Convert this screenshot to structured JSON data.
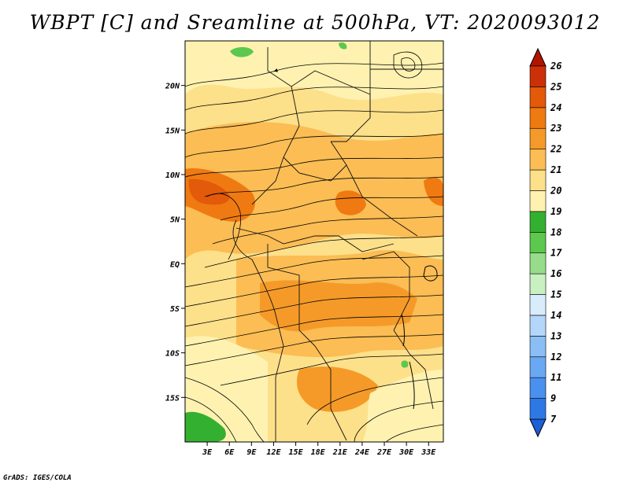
{
  "title": "WBPT [C] and Sreamline at 500hPa, VT: 2020093012",
  "footer": "GrADS: IGES/COLA",
  "map": {
    "lon_range": [
      0,
      35
    ],
    "lat_range": [
      -20,
      25
    ],
    "lat_ticks": [
      {
        "value": 20,
        "label": "20N"
      },
      {
        "value": 15,
        "label": "15N"
      },
      {
        "value": 10,
        "label": "10N"
      },
      {
        "value": 5,
        "label": "5N"
      },
      {
        "value": 0,
        "label": "EQ"
      },
      {
        "value": -5,
        "label": "5S"
      },
      {
        "value": -10,
        "label": "10S"
      },
      {
        "value": -15,
        "label": "15S"
      }
    ],
    "lon_ticks": [
      {
        "value": 3,
        "label": "3E"
      },
      {
        "value": 6,
        "label": "6E"
      },
      {
        "value": 9,
        "label": "9E"
      },
      {
        "value": 12,
        "label": "12E"
      },
      {
        "value": 15,
        "label": "15E"
      },
      {
        "value": 18,
        "label": "18E"
      },
      {
        "value": 21,
        "label": "21E"
      },
      {
        "value": 24,
        "label": "24E"
      },
      {
        "value": 27,
        "label": "27E"
      },
      {
        "value": 30,
        "label": "30E"
      },
      {
        "value": 33,
        "label": "33E"
      }
    ]
  },
  "colorbar": {
    "levels": [
      "7",
      "9",
      "11",
      "12",
      "13",
      "14",
      "15",
      "16",
      "17",
      "18",
      "19",
      "20",
      "21",
      "22",
      "23",
      "24",
      "25",
      "26"
    ],
    "colors": [
      "#1c5fd6",
      "#2e78e6",
      "#4a90ee",
      "#6aa8f3",
      "#8cbef6",
      "#b4d6fa",
      "#d8ecfc",
      "#c8f0c0",
      "#96dc8a",
      "#5cc84e",
      "#34b030",
      "#fff2b0",
      "#fde08a",
      "#fbbd54",
      "#f59a28",
      "#ef7a12",
      "#e25a0a",
      "#cc3008",
      "#b31400"
    ]
  },
  "legend": {
    "field": "WBPT [C]",
    "color_meaning": "warmer orange/red = higher wet-bulb potential temperature"
  }
}
